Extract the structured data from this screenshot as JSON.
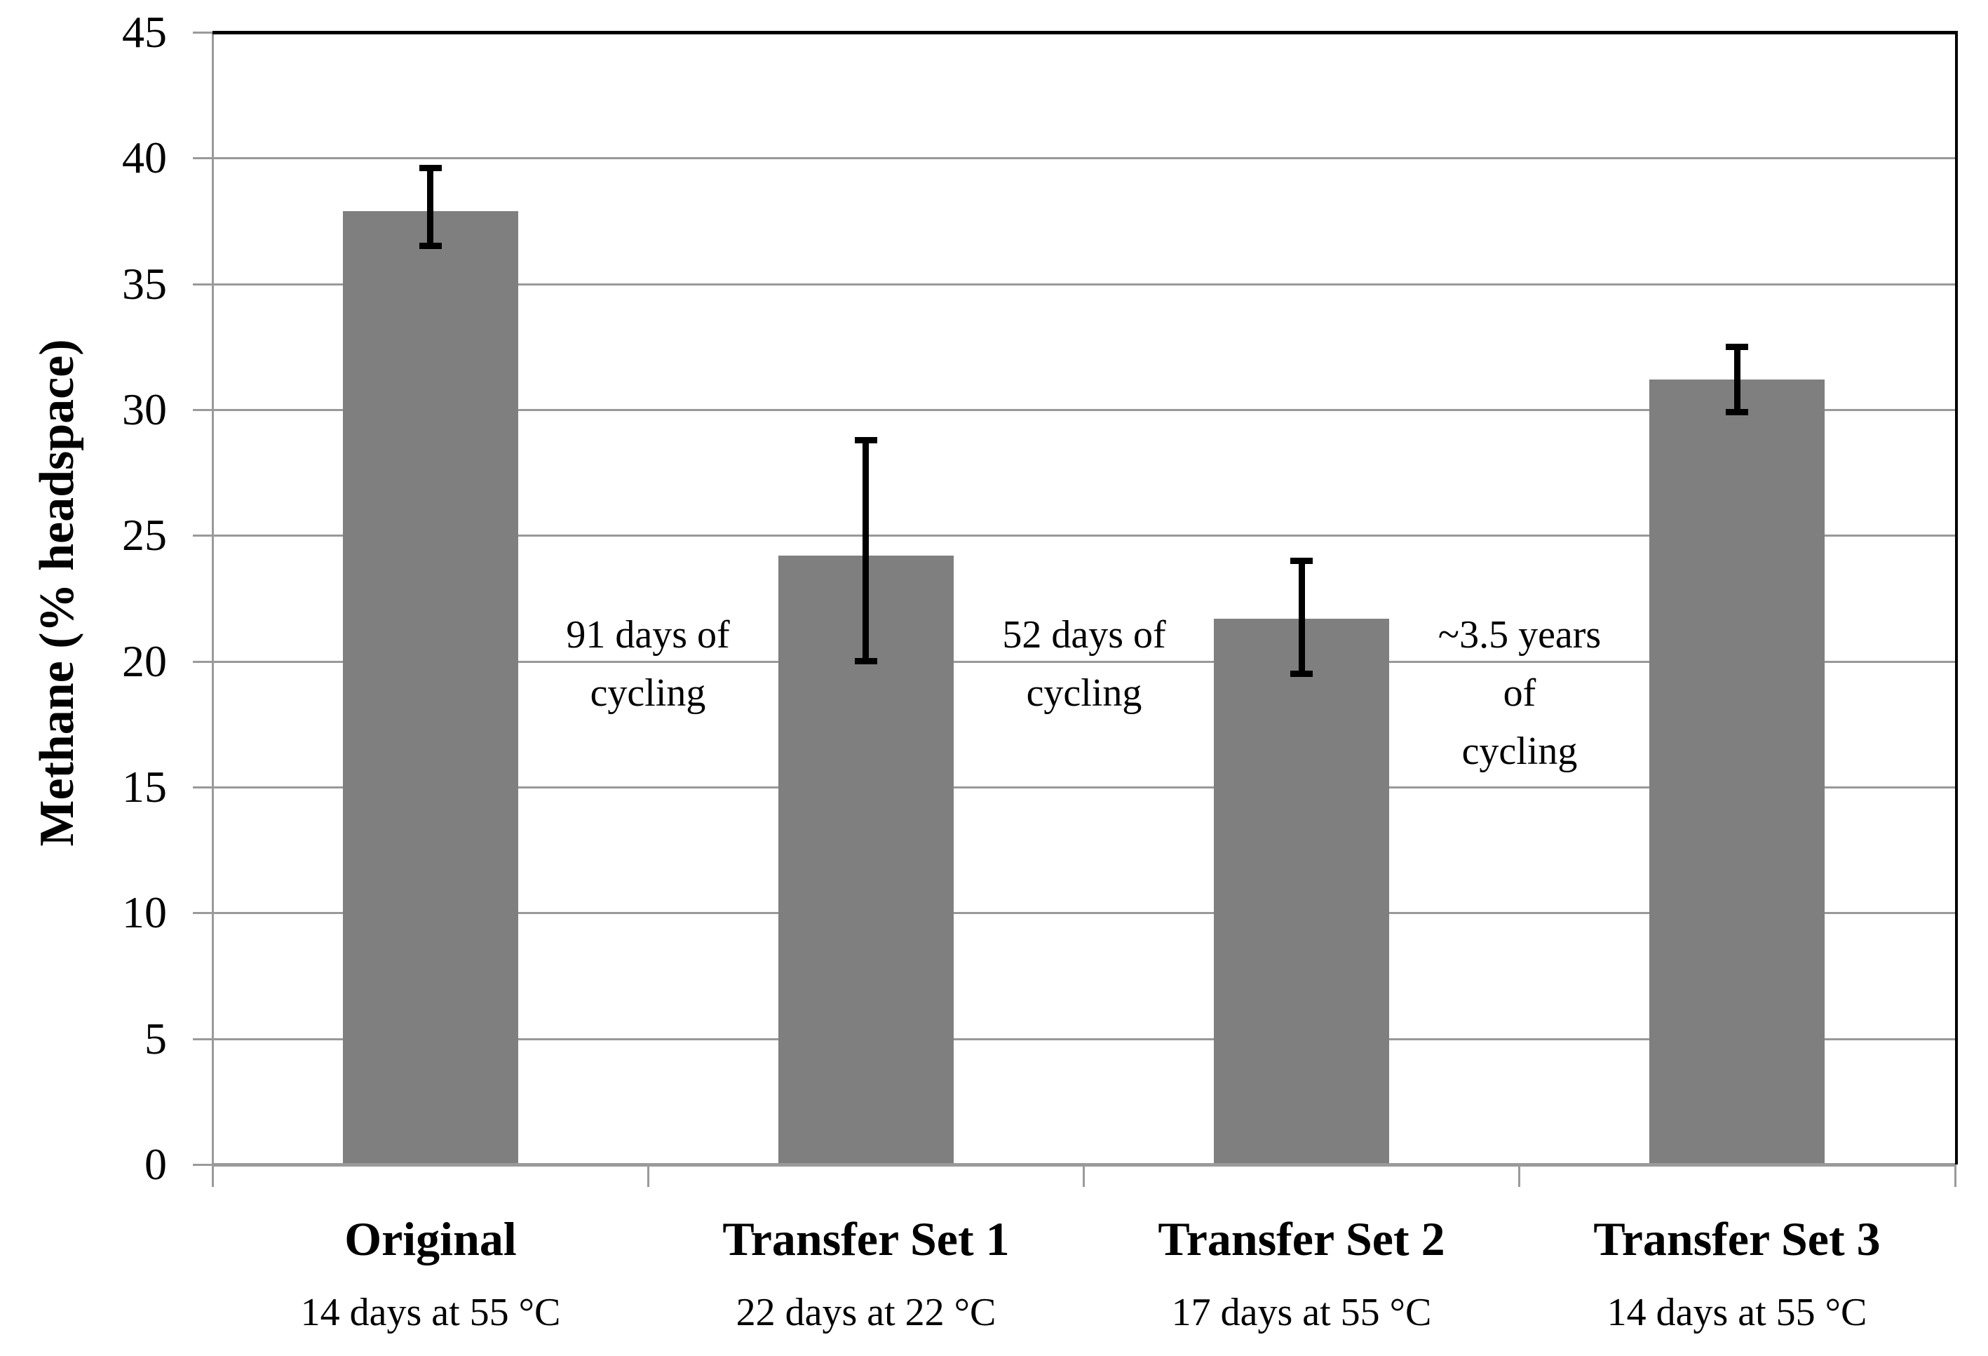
{
  "chart_data": {
    "type": "bar",
    "title": "",
    "xlabel": "",
    "ylabel": "Methane (% headspace)",
    "ylim": [
      0,
      45
    ],
    "yticks": [
      0,
      5,
      10,
      15,
      20,
      25,
      30,
      35,
      40,
      45
    ],
    "grid": true,
    "legend": false,
    "bar_color": "#7f7f7f",
    "error_bar_color": "#000000",
    "gridline_color": "#999999",
    "axis_color": "#9a9a9a",
    "frame_color": "#000000",
    "categories": [
      "Original",
      "Transfer Set 1",
      "Transfer Set 2",
      "Transfer Set 3"
    ],
    "sublabels": [
      "14 days at 55 °C",
      "22 days at 22 °C",
      "17 days at 55 °C",
      "14 days at 55 °C"
    ],
    "values": [
      37.9,
      24.2,
      21.7,
      31.2
    ],
    "error_low": [
      36.5,
      20.0,
      19.5,
      29.9
    ],
    "error_high": [
      39.6,
      28.8,
      24.0,
      32.5
    ],
    "annotations": [
      {
        "text": "91 days of\ncycling",
        "boundary_index": 1
      },
      {
        "text": "52 days of\ncycling",
        "boundary_index": 2
      },
      {
        "text": "~3.5 years\nof\ncycling",
        "boundary_index": 3
      }
    ]
  }
}
